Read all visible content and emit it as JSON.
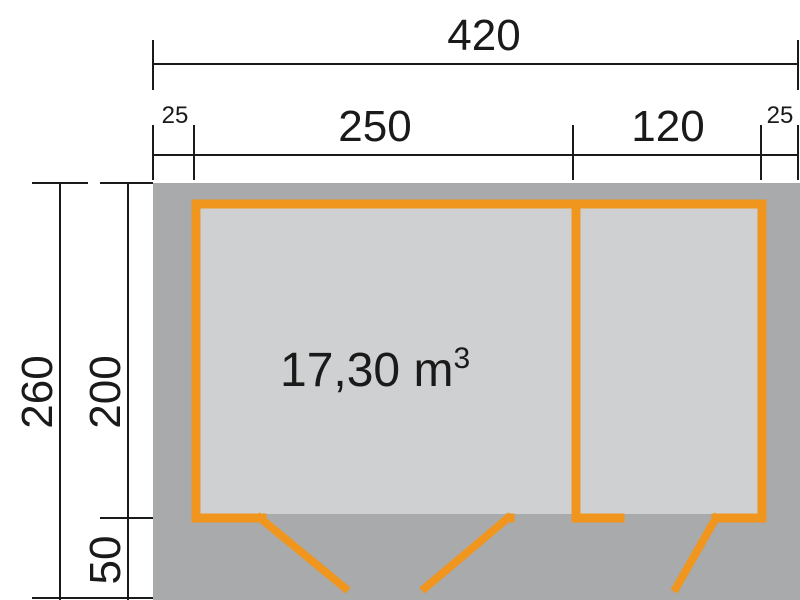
{
  "dimensions": {
    "overall_width": "420",
    "left_overhang": "25",
    "room_left_width": "250",
    "room_right_width": "120",
    "right_overhang": "25",
    "overall_depth": "260",
    "room_depth": "200",
    "porch_depth": "50"
  },
  "area_label": {
    "value": "17,30 m",
    "superscript": "3"
  },
  "colors": {
    "outer_gray": "#a8aaac",
    "room_gray": "#cfd0d1",
    "wall_orange": "#f0961e",
    "line": "#1a1a1a"
  }
}
